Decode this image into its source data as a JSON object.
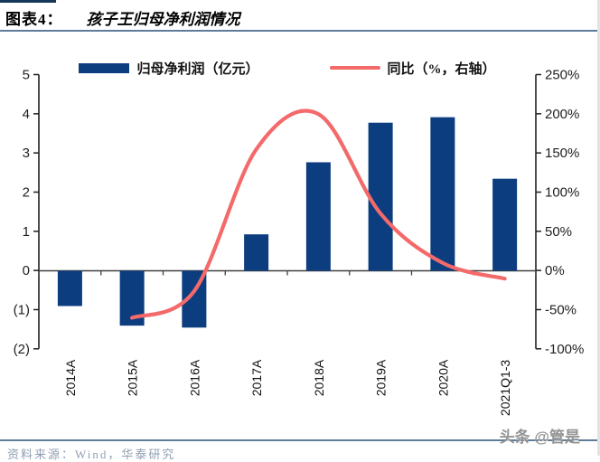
{
  "header": {
    "figure_label": "图表4：",
    "figure_title": "孩子王归母净利润情况"
  },
  "legend": {
    "bar_label": "归母净利润（亿元）",
    "line_label": "同比（%，右轴）"
  },
  "chart_data": {
    "type": "bar",
    "subtype": "combo-bar-line",
    "categories": [
      "2014A",
      "2015A",
      "2016A",
      "2017A",
      "2018A",
      "2019A",
      "2020A",
      "2021Q1-3"
    ],
    "series": [
      {
        "name": "归母净利润（亿元）",
        "type": "bar",
        "axis": "left",
        "color": "#0b3d7f",
        "values": [
          -0.9,
          -1.4,
          -1.45,
          0.93,
          2.77,
          3.78,
          3.92,
          2.35
        ]
      },
      {
        "name": "同比（%，右轴）",
        "type": "line",
        "smooth": true,
        "axis": "right",
        "color": "#f4696a",
        "values": [
          null,
          -60,
          -26,
          155,
          200,
          73,
          10,
          -10
        ]
      }
    ],
    "left_axis": {
      "ticks": [
        "5",
        "4",
        "3",
        "2",
        "1",
        "0",
        "(1)",
        "(2)"
      ],
      "max": 5,
      "min": -2,
      "step": 1
    },
    "right_axis": {
      "ticks": [
        "250%",
        "200%",
        "150%",
        "100%",
        "50%",
        "0%",
        "-50%",
        "-100%"
      ],
      "max": 250,
      "min": -100,
      "step": 50
    },
    "grid": false,
    "legend_position": "top"
  },
  "footer": {
    "source": "资料来源：Wind，华泰研究",
    "watermark": "头条 @管是"
  },
  "colors": {
    "bar": "#0b3d7f",
    "line": "#f4696a",
    "rule": "#5e7d9a",
    "accent_bar": "#16365c",
    "axis_text": "#1f1f1f",
    "zero_line": "#404040"
  }
}
